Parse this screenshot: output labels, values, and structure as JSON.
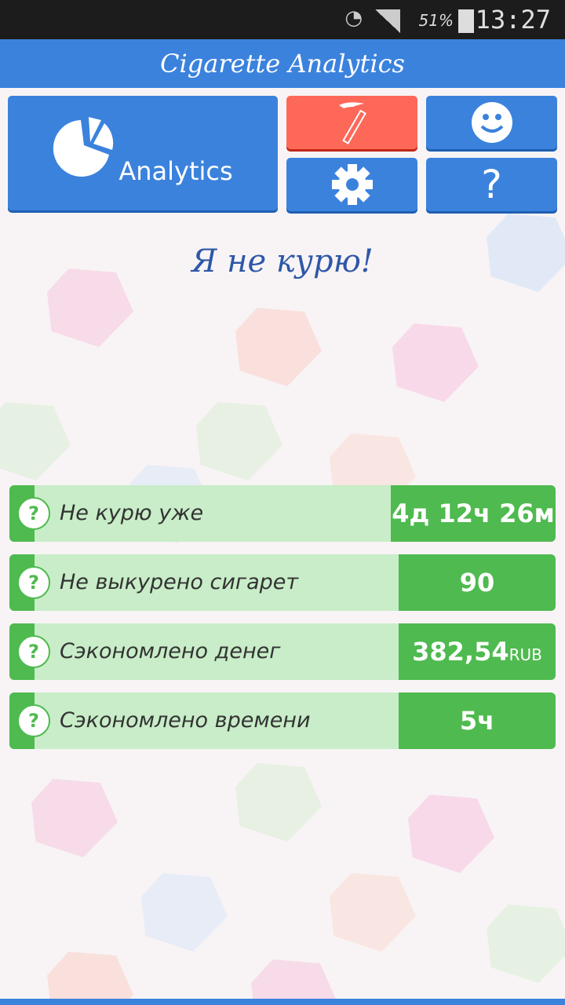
{
  "status_bar": {
    "battery": "51%",
    "time": "13:27"
  },
  "app_title": "Cigarette Analytics",
  "tiles": {
    "analytics_label": "Analytics",
    "help_label": "?"
  },
  "slogan": "Я не курю!",
  "stats": [
    {
      "label": "Не курю уже",
      "value": "4д 12ч 26м"
    },
    {
      "label": "Не выкурено сигарет",
      "value": "90"
    },
    {
      "label": "Сэкономлено денег",
      "value": "382,54",
      "unit": "RUB"
    },
    {
      "label": "Сэкономлено времени",
      "value": "5ч"
    }
  ],
  "colors": {
    "primary": "#3b82dd",
    "danger": "#fd6858",
    "success": "#4fba4f",
    "success_light": "#c8edc8"
  }
}
